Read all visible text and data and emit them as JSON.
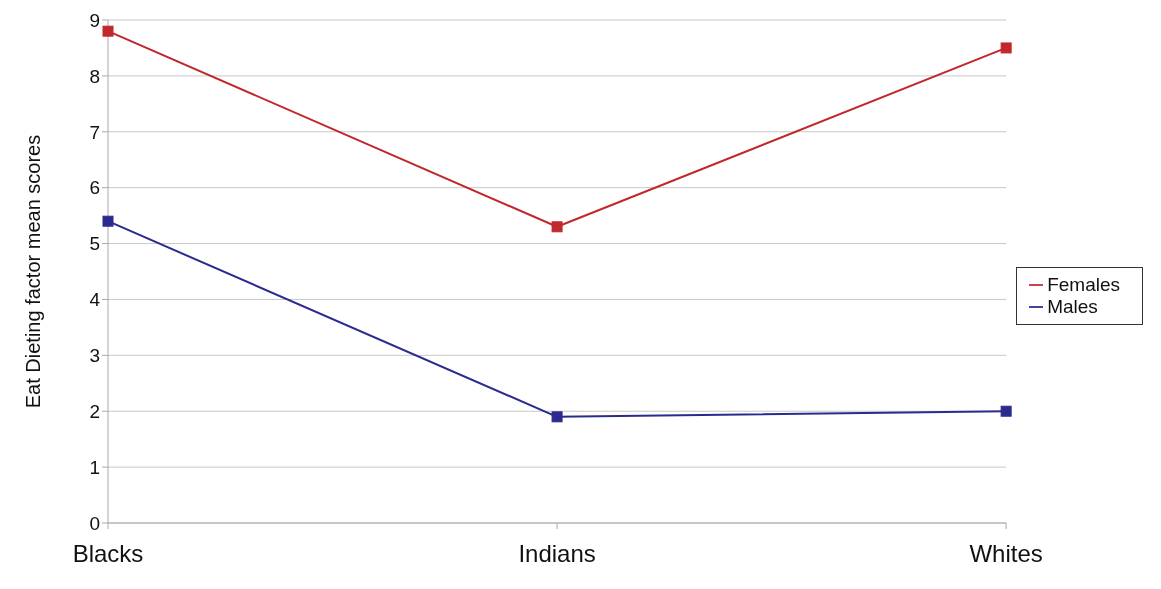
{
  "chart_data": {
    "type": "line",
    "ylabel": "Eat Dieting factor mean scores",
    "categories": [
      "Blacks",
      "Indians",
      "Whites"
    ],
    "series": [
      {
        "name": "Females",
        "color": "#c0282d",
        "values": [
          8.8,
          5.3,
          8.5
        ]
      },
      {
        "name": "Males",
        "color": "#2b2b8f",
        "values": [
          5.4,
          1.9,
          2.0
        ]
      }
    ],
    "ylim": [
      0,
      9
    ],
    "yticks": [
      0,
      1,
      2,
      3,
      4,
      5,
      6,
      7,
      8,
      9
    ],
    "grid": "y",
    "legend": "right",
    "marker": "square",
    "line_style": "solid"
  }
}
